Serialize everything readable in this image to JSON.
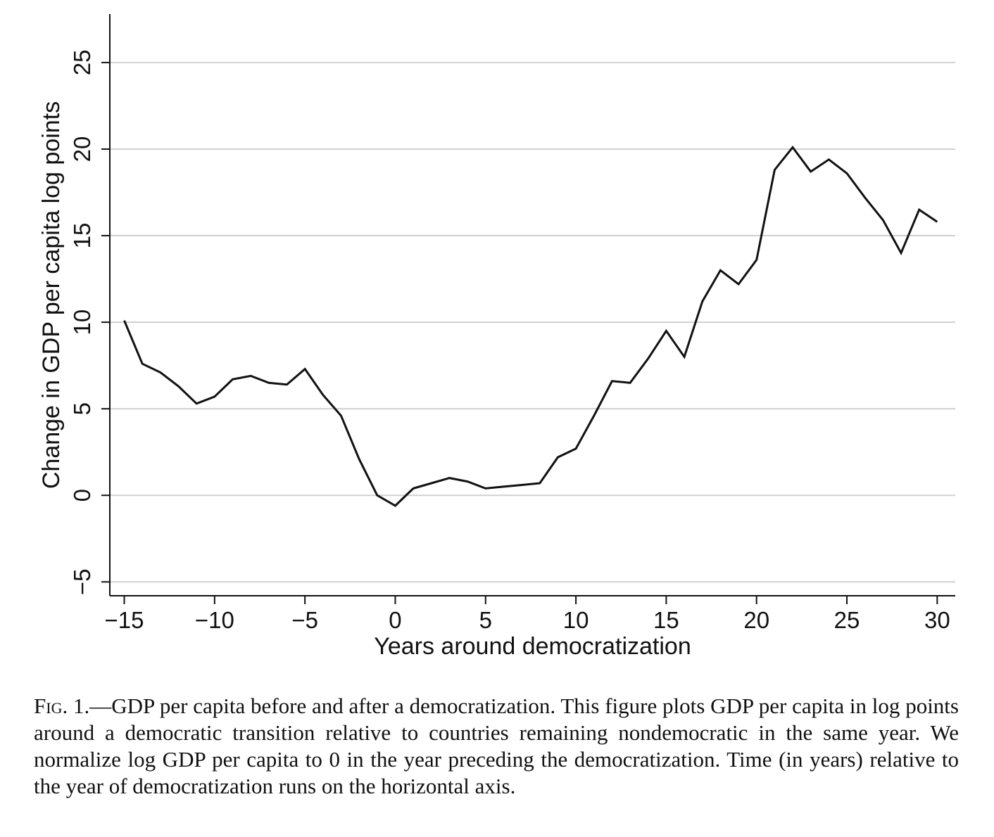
{
  "chart_data": {
    "type": "line",
    "xlabel": "Years around democratization",
    "ylabel": "Change in GDP per capita log points",
    "xlim": [
      -15.8,
      31
    ],
    "ylim": [
      -5.8,
      27.8
    ],
    "x_ticks": [
      -15,
      -10,
      -5,
      0,
      5,
      10,
      15,
      20,
      25,
      30
    ],
    "x_tick_labels": [
      "−15",
      "−10",
      "−5",
      "0",
      "5",
      "10",
      "15",
      "20",
      "25",
      "30"
    ],
    "y_ticks": [
      -5,
      0,
      5,
      10,
      15,
      20,
      25
    ],
    "y_tick_labels": [
      "−5",
      "0",
      "5",
      "10",
      "15",
      "20",
      "25"
    ],
    "grid": "horizontal",
    "line_color": "#111111",
    "grid_color": "#d0d0d0",
    "x": [
      -15,
      -14,
      -13,
      -12,
      -11,
      -10,
      -9,
      -8,
      -7,
      -6,
      -5,
      -4,
      -3,
      -2,
      -1,
      0,
      1,
      2,
      3,
      4,
      5,
      6,
      7,
      8,
      9,
      10,
      11,
      12,
      13,
      14,
      15,
      16,
      17,
      18,
      19,
      20,
      21,
      22,
      23,
      24,
      25,
      26,
      27,
      28,
      29,
      30
    ],
    "values": [
      10.1,
      7.6,
      7.1,
      6.3,
      5.3,
      5.7,
      6.7,
      6.9,
      6.5,
      6.4,
      7.3,
      5.8,
      4.6,
      2.1,
      0.0,
      -0.6,
      0.4,
      0.7,
      1.0,
      0.8,
      0.4,
      0.5,
      0.6,
      0.7,
      2.2,
      2.7,
      4.6,
      6.6,
      6.5,
      7.9,
      9.5,
      8.0,
      11.2,
      13.0,
      12.2,
      13.6,
      18.8,
      20.1,
      18.7,
      19.4,
      18.6,
      17.2,
      15.9,
      14.0,
      16.5,
      15.8
    ]
  },
  "caption": {
    "label": "Fig. 1.",
    "text": "—GDP per capita before and after a democratization. This figure plots GDP per capita in log points around a democratic transition relative to countries remaining nondemocratic in the same year. We normalize log GDP per capita to 0 in the year preceding the democratization. Time (in years) relative to the year of democratization runs on the horizontal axis."
  }
}
